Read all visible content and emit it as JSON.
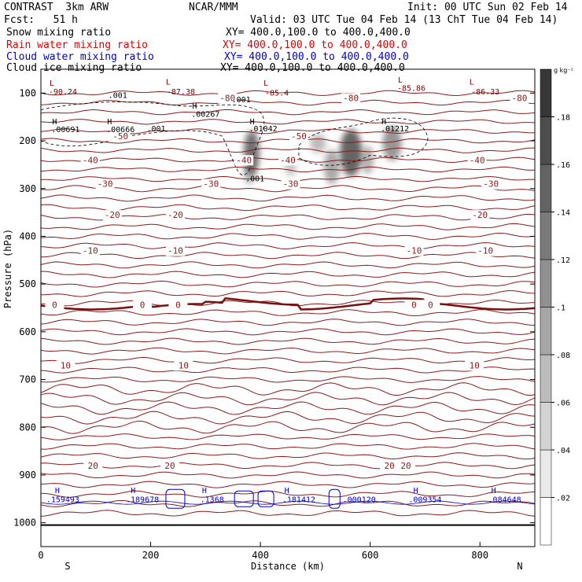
{
  "header": {
    "model": "CONTRAST  3km ARW",
    "fcst": "Fcst:   51 h",
    "org": "NCAR/MMM",
    "init": "Init: 00 UTC Sun 02 Feb 14",
    "valid": "Valid: 03 UTC Tue 04 Feb 14 (13 ChT Tue 04 Feb 14)"
  },
  "fields": [
    {
      "name": "Snow mixing ratio",
      "xy": "XY= 400.0,100.0 to 400.0,400.0",
      "color": "#000000"
    },
    {
      "name": "Rain water mixing ratio",
      "xy": "XY= 400.0,100.0 to 400.0,400.0",
      "color": "#e00000"
    },
    {
      "name": "Cloud water mixing ratio",
      "xy": "XY= 400.0,100.0 to 400.0,400.0",
      "color": "#0000d0"
    },
    {
      "name": "Cloud ice mixing ratio",
      "xy": "XY= 400.0,100.0 to 400.0,400.0",
      "color": "#000000"
    }
  ],
  "chart_data": {
    "type": "cross-section contour",
    "xlabel": "Distance (km)",
    "ylabel": "Pressure (hPa)",
    "xlim": [
      0,
      900
    ],
    "ylim": [
      1050,
      50
    ],
    "x_ticks": [
      0,
      200,
      400,
      600,
      800
    ],
    "y_ticks": [
      100,
      200,
      300,
      400,
      500,
      600,
      700,
      800,
      900,
      1000
    ],
    "x_end_labels": {
      "left": "S",
      "right": "N"
    },
    "temperature_contours": [
      {
        "value": -80,
        "labels": [
          {
            "x": 340,
            "text": "-80"
          },
          {
            "x": 565,
            "text": "-80"
          },
          {
            "x": 872,
            "text": "-80"
          }
        ]
      },
      {
        "value": -50,
        "labels": [
          {
            "x": 145,
            "text": "-50"
          },
          {
            "x": 470,
            "text": "-50"
          }
        ]
      },
      {
        "value": -40,
        "labels": [
          {
            "x": 90,
            "text": "-40"
          },
          {
            "x": 370,
            "text": "-40"
          },
          {
            "x": 450,
            "text": "-40"
          },
          {
            "x": 795,
            "text": "-40"
          }
        ]
      },
      {
        "value": -30,
        "labels": [
          {
            "x": 117,
            "text": "-30"
          },
          {
            "x": 310,
            "text": "-30"
          },
          {
            "x": 455,
            "text": "-30"
          },
          {
            "x": 820,
            "text": "-30"
          }
        ]
      },
      {
        "value": -20,
        "labels": [
          {
            "x": 130,
            "text": "-20"
          },
          {
            "x": 245,
            "text": "-20"
          },
          {
            "x": 800,
            "text": "-20"
          }
        ]
      },
      {
        "value": -10,
        "labels": [
          {
            "x": 90,
            "text": "-10"
          },
          {
            "x": 245,
            "text": "-10"
          },
          {
            "x": 680,
            "text": "-10"
          },
          {
            "x": 810,
            "text": "-10"
          }
        ]
      },
      {
        "value": 0,
        "labels": [
          {
            "x": 25,
            "text": "0"
          },
          {
            "x": 185,
            "text": "0"
          },
          {
            "x": 250,
            "text": "0"
          },
          {
            "x": 680,
            "text": "0"
          },
          {
            "x": 710,
            "text": "0"
          }
        ]
      },
      {
        "value": 10,
        "labels": [
          {
            "x": 45,
            "text": "10"
          },
          {
            "x": 260,
            "text": "10"
          },
          {
            "x": 790,
            "text": "10"
          }
        ]
      },
      {
        "value": 20,
        "labels": [
          {
            "x": 95,
            "text": "20"
          },
          {
            "x": 235,
            "text": "20"
          },
          {
            "x": 635,
            "text": "20"
          },
          {
            "x": 665,
            "text": "20"
          }
        ]
      }
    ],
    "annotations": [
      {
        "text": "L",
        "x": 20,
        "p": 85,
        "color": "#800000"
      },
      {
        "text": "-90.24",
        "x": 40,
        "p": 103,
        "color": "#800000"
      },
      {
        "text": "L",
        "x": 232,
        "p": 82,
        "color": "#800000"
      },
      {
        "text": "-87.38",
        "x": 255,
        "p": 103,
        "color": "#800000"
      },
      {
        "text": "L",
        "x": 410,
        "p": 85,
        "color": "#800000"
      },
      {
        "text": "-85.4",
        "x": 430,
        "p": 105,
        "color": "#800000"
      },
      {
        "text": "L",
        "x": 655,
        "p": 78,
        "color": "#800000"
      },
      {
        "text": "-85.86",
        "x": 675,
        "p": 95,
        "color": "#800000"
      },
      {
        "text": "L",
        "x": 785,
        "p": 82,
        "color": "#800000"
      },
      {
        "text": "-86.33",
        "x": 810,
        "p": 103,
        "color": "#800000"
      },
      {
        "text": ".001",
        "x": 140,
        "p": 110,
        "color": "#000000"
      },
      {
        "text": ".001",
        "x": 365,
        "p": 119,
        "color": "#000000"
      },
      {
        "text": "H",
        "x": 280,
        "p": 132,
        "color": "#000000"
      },
      {
        "text": ".00267",
        "x": 300,
        "p": 150,
        "color": "#000000"
      },
      {
        "text": "H",
        "x": 25,
        "p": 165,
        "color": "#000000"
      },
      {
        "text": ".00691",
        "x": 45,
        "p": 182,
        "color": "#000000"
      },
      {
        "text": "H",
        "x": 125,
        "p": 165,
        "color": "#000000"
      },
      {
        "text": ".00666",
        "x": 145,
        "p": 182,
        "color": "#000000"
      },
      {
        "text": ".001",
        "x": 210,
        "p": 180,
        "color": "#000000"
      },
      {
        "text": "H",
        "x": 385,
        "p": 165,
        "color": "#000000"
      },
      {
        "text": ".01042",
        "x": 405,
        "p": 180,
        "color": "#000000"
      },
      {
        "text": "H",
        "x": 625,
        "p": 165,
        "color": "#000000"
      },
      {
        "text": ".01212",
        "x": 645,
        "p": 180,
        "color": "#000000"
      },
      {
        "text": ".001",
        "x": 390,
        "p": 285,
        "color": "#000000"
      },
      {
        "text": "H",
        "x": 30,
        "p": 938,
        "color": "#0000d0"
      },
      {
        "text": ".159493",
        "x": 40,
        "p": 957,
        "color": "#0000d0"
      },
      {
        "text": "H",
        "x": 168,
        "p": 938,
        "color": "#0000d0"
      },
      {
        "text": ".189678",
        "x": 185,
        "p": 957,
        "color": "#0000d0"
      },
      {
        "text": "H",
        "x": 298,
        "p": 938,
        "color": "#0000d0"
      },
      {
        "text": ".1368",
        "x": 312,
        "p": 957,
        "color": "#0000d0"
      },
      {
        "text": "H",
        "x": 448,
        "p": 938,
        "color": "#0000d0"
      },
      {
        "text": ".181412",
        "x": 470,
        "p": 957,
        "color": "#0000d0"
      },
      {
        "text": ".000120",
        "x": 580,
        "p": 957,
        "color": "#0000d0"
      },
      {
        "text": "H",
        "x": 683,
        "p": 938,
        "color": "#0000d0"
      },
      {
        "text": ".009354",
        "x": 700,
        "p": 957,
        "color": "#0000d0"
      },
      {
        "text": "H",
        "x": 825,
        "p": 938,
        "color": "#0000d0"
      },
      {
        "text": ".084648",
        "x": 845,
        "p": 957,
        "color": "#0000d0"
      }
    ],
    "colorbar": {
      "unit": "g kg⁻¹",
      "ticks": [
        ".02",
        ".04",
        ".06",
        ".08",
        ".1",
        ".12",
        ".14",
        ".16",
        ".18"
      ],
      "range": [
        0,
        0.2
      ]
    }
  }
}
